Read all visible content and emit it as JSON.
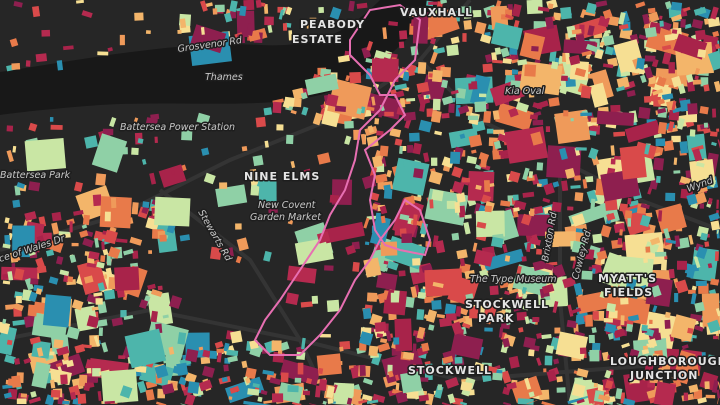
{
  "labels": {
    "vauxhall": "VAUXHALL",
    "peabody_1": "PEABODY",
    "peabody_2": "ESTATE",
    "grosvenor": "Grosvenor Rd",
    "thames": "Thames",
    "power_station": "Battersea Power Station",
    "battersea_park": "Battersea Park",
    "nine_elms": "NINE ELMS",
    "covent_1": "New Covent",
    "covent_2": "Garden Market",
    "stewarts": "Stewarts Rd",
    "prince_wales": "ce of Wales Dr",
    "kia_oval": "Kia Oval",
    "wyndham": "Wynd",
    "brixton": "Brixton Rd",
    "cowley": "Cowley Rd",
    "museum": "The Type Museum",
    "myatts_1": "MYATT'S",
    "myatts_2": "FIELDS",
    "stockwell_park_1": "STOCKWELL",
    "stockwell_park_2": "PARK",
    "stockwell": "STOCKWELL",
    "lough_1": "LOUGHBOROUGH",
    "lough_2": "JUNCTION"
  }
}
